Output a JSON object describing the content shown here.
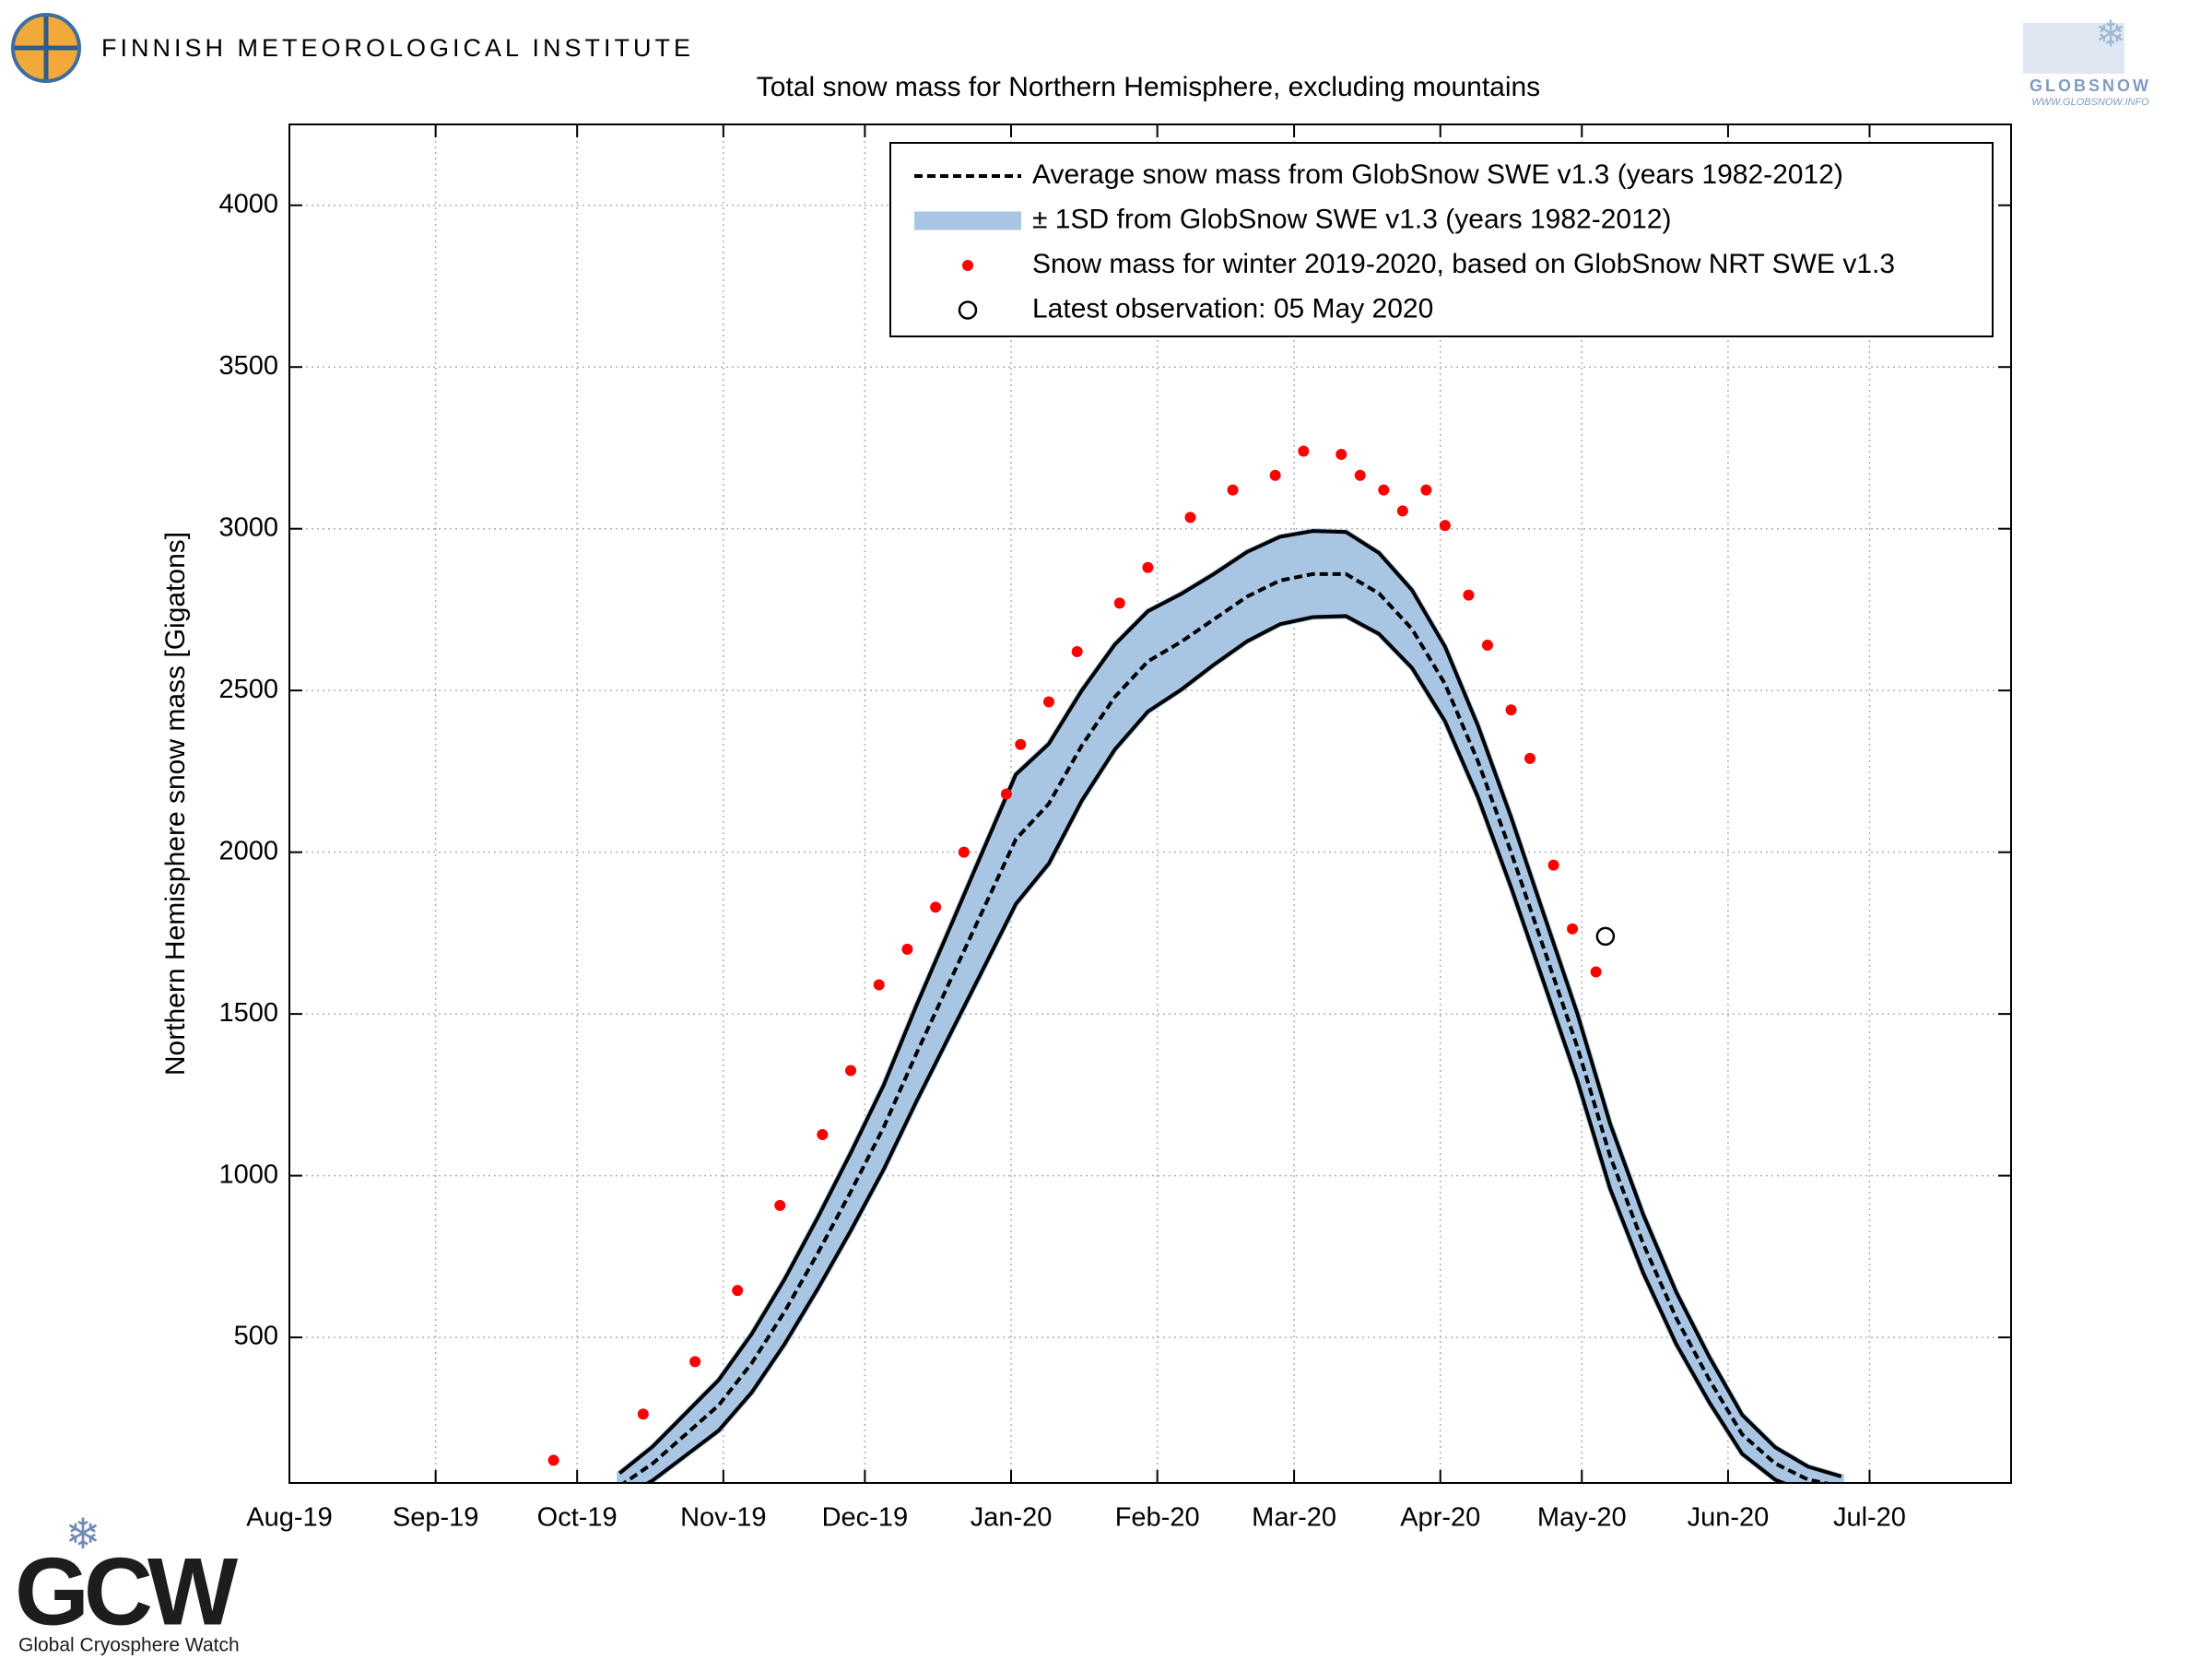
{
  "header": {
    "institute": "FINNISH METEOROLOGICAL INSTITUTE",
    "globsnow": "GLOBSNOW",
    "globsnow_url": "WWW.GLOBSNOW.INFO",
    "gcw": "GCW",
    "gcw_name": "Global Cryosphere Watch"
  },
  "chart_data": {
    "type": "line",
    "title": "Total snow mass for Northern Hemisphere, excluding mountains",
    "y_label": "Northern Hemisphere snow mass [Gigatons]",
    "xlim": [
      0,
      365
    ],
    "xticks": [
      {
        "value": 0,
        "label": "Aug-19"
      },
      {
        "value": 31,
        "label": "Sep-19"
      },
      {
        "value": 61,
        "label": "Oct-19"
      },
      {
        "value": 92,
        "label": "Nov-19"
      },
      {
        "value": 122,
        "label": "Dec-19"
      },
      {
        "value": 153,
        "label": "Jan-20"
      },
      {
        "value": 184,
        "label": "Feb-20"
      },
      {
        "value": 213,
        "label": "Mar-20"
      },
      {
        "value": 244,
        "label": "Apr-20"
      },
      {
        "value": 274,
        "label": "May-20"
      },
      {
        "value": 305,
        "label": "Jun-20"
      },
      {
        "value": 335,
        "label": "Jul-20"
      }
    ],
    "ylim": [
      50,
      4250
    ],
    "yticks": [
      500,
      1000,
      1500,
      2000,
      2500,
      3000,
      3500,
      4000
    ],
    "grid": true,
    "legend": "top-right",
    "series": [
      {
        "name": "Average snow mass from GlobSnow SWE v1.3 (years 1982-2012)",
        "type": "line",
        "color": "#000000",
        "dashed": true,
        "x": [
          70,
          77,
          84,
          91,
          98,
          105,
          112,
          119,
          126,
          133,
          140,
          147,
          154,
          161,
          168,
          175,
          182,
          189,
          196,
          203,
          210,
          217,
          224,
          231,
          238,
          245,
          252,
          259,
          266,
          273,
          280,
          287,
          294,
          301,
          308,
          315,
          322,
          329
        ],
        "values": [
          40,
          110,
          200,
          290,
          420,
          580,
          760,
          950,
          1150,
          1380,
          1600,
          1820,
          2040,
          2150,
          2330,
          2480,
          2590,
          2650,
          2720,
          2790,
          2840,
          2860,
          2860,
          2800,
          2690,
          2520,
          2280,
          2000,
          1700,
          1400,
          1060,
          790,
          560,
          370,
          200,
          110,
          60,
          40
        ]
      },
      {
        "name": "± 1SD from GlobSnow SWE v1.3 (years 1982-2012)",
        "type": "band",
        "color": "#a8c6e4",
        "edge_color": "#000000",
        "x": [
          70,
          77,
          84,
          91,
          98,
          105,
          112,
          119,
          126,
          133,
          140,
          147,
          154,
          161,
          168,
          175,
          182,
          189,
          196,
          203,
          210,
          217,
          224,
          231,
          238,
          245,
          252,
          259,
          266,
          273,
          280,
          287,
          294,
          301,
          308,
          315,
          322,
          329
        ],
        "lower": [
          0,
          58,
          135,
          212,
          330,
          480,
          650,
          830,
          1020,
          1232,
          1435,
          1637,
          1840,
          1965,
          2160,
          2318,
          2435,
          2502,
          2580,
          2652,
          2705,
          2727,
          2730,
          2675,
          2570,
          2405,
          2170,
          1892,
          1595,
          1297,
          960,
          700,
          480,
          300,
          140,
          60,
          20,
          10
        ],
        "upper": [
          80,
          162,
          265,
          368,
          510,
          680,
          870,
          1070,
          1280,
          1528,
          1765,
          2003,
          2240,
          2335,
          2500,
          2642,
          2745,
          2798,
          2860,
          2928,
          2975,
          2993,
          2990,
          2925,
          2810,
          2635,
          2390,
          2108,
          1805,
          1503,
          1160,
          880,
          640,
          440,
          260,
          160,
          100,
          70
        ]
      },
      {
        "name": "Snow mass for winter 2019-2020, based on GlobSnow NRT SWE v1.3",
        "type": "scatter",
        "color": "#ff0000",
        "x": [
          56,
          75,
          86,
          95,
          104,
          113,
          119,
          125,
          131,
          137,
          143,
          152,
          155,
          161,
          167,
          176,
          182,
          191,
          200,
          209,
          215,
          223,
          227,
          232,
          236,
          241,
          245,
          250,
          254,
          259,
          263,
          268,
          272,
          277
        ],
        "values": [
          120,
          263,
          425,
          645,
          908,
          1127,
          1325,
          1590,
          1700,
          1830,
          2000,
          2180,
          2333,
          2465,
          2620,
          2770,
          2880,
          3035,
          3120,
          3165,
          3240,
          3230,
          3165,
          3120,
          3055,
          3120,
          3010,
          2795,
          2640,
          2440,
          2290,
          1960,
          1763,
          1630
        ]
      },
      {
        "name": "Latest observation: 05 May 2020",
        "type": "marker",
        "color": "#000000",
        "x": [
          279
        ],
        "values": [
          1740
        ]
      }
    ]
  }
}
